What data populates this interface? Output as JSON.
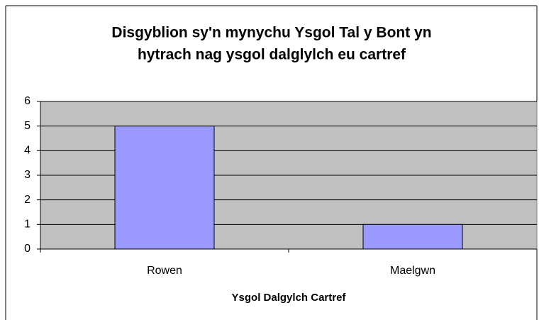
{
  "chart_data": {
    "type": "bar",
    "title": [
      "Disgyblion sy'n mynychu Ysgol Tal y Bont yn",
      "hytrach nag ysgol dalglylch eu cartref"
    ],
    "x_label": "Ysgol Dalgylch Cartref",
    "categories": [
      "Rowen",
      "Maelgwn"
    ],
    "values": [
      5,
      1
    ],
    "color": "#9999ff",
    "ylim": [
      0,
      6
    ],
    "yticks": [
      0,
      1,
      2,
      3,
      4,
      5,
      6
    ],
    "grid": true
  }
}
